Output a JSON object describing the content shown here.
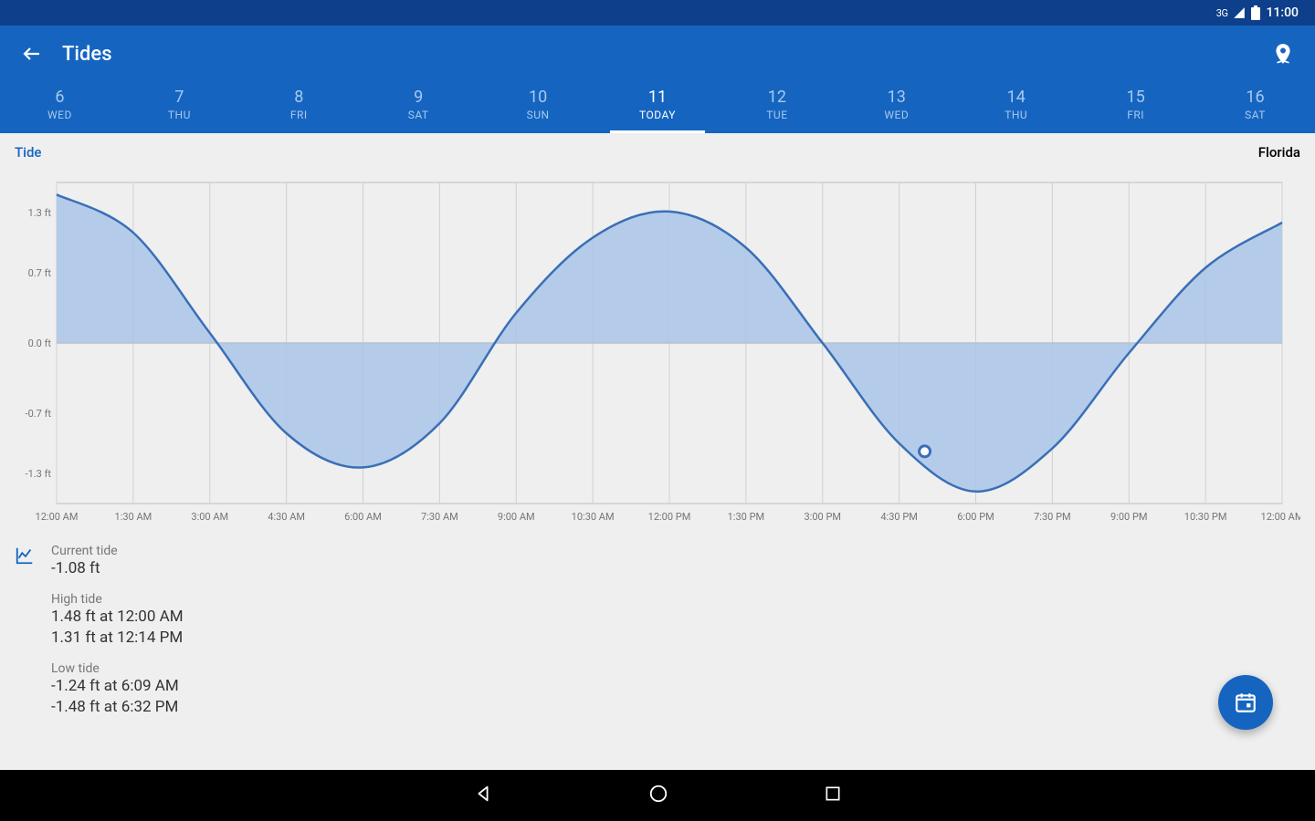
{
  "status": {
    "network": "3G",
    "time": "11:00"
  },
  "appbar": {
    "title": "Tides"
  },
  "tabs": [
    {
      "num": "6",
      "label": "WED",
      "selected": false
    },
    {
      "num": "7",
      "label": "THU",
      "selected": false
    },
    {
      "num": "8",
      "label": "FRI",
      "selected": false
    },
    {
      "num": "9",
      "label": "SAT",
      "selected": false
    },
    {
      "num": "10",
      "label": "SUN",
      "selected": false
    },
    {
      "num": "11",
      "label": "TODAY",
      "selected": true
    },
    {
      "num": "12",
      "label": "TUE",
      "selected": false
    },
    {
      "num": "13",
      "label": "WED",
      "selected": false
    },
    {
      "num": "14",
      "label": "THU",
      "selected": false
    },
    {
      "num": "15",
      "label": "FRI",
      "selected": false
    },
    {
      "num": "16",
      "label": "SAT",
      "selected": false
    }
  ],
  "chart": {
    "type": "area",
    "left_label": "Tide",
    "right_label": "Florida",
    "x_labels": [
      "12:00 AM",
      "1:30 AM",
      "3:00 AM",
      "4:30 AM",
      "6:00 AM",
      "7:30 AM",
      "9:00 AM",
      "10:30 AM",
      "12:00 PM",
      "1:30 PM",
      "3:00 PM",
      "4:30 PM",
      "6:00 PM",
      "7:30 PM",
      "9:00 PM",
      "10:30 PM",
      "12:00 AM"
    ],
    "y_ticks": [
      1.3,
      0.7,
      0.0,
      -0.7,
      -1.3
    ],
    "y_unit": "ft",
    "ylim": [
      -1.6,
      1.6
    ],
    "xlim": [
      0,
      24
    ],
    "series_hours": [
      0,
      1.5,
      3,
      4.5,
      6,
      7.5,
      9,
      10.5,
      12,
      13.5,
      15,
      16.5,
      18,
      19.5,
      21,
      22.5,
      24
    ],
    "series_values": [
      1.48,
      1.1,
      0.1,
      -0.9,
      -1.24,
      -0.8,
      0.3,
      1.05,
      1.31,
      0.95,
      0.0,
      -1.0,
      -1.48,
      -1.05,
      -0.1,
      0.75,
      1.2
    ],
    "marker": {
      "hour": 17,
      "value": -1.08
    },
    "fill_color": "#a9c5e8",
    "line_color": "#3a6fb7",
    "axis_color": "#bdbdbd",
    "grid_color": "#d0d0d0",
    "background_color": "#efefef",
    "label_color": "#757575",
    "label_fontsize": 11
  },
  "info": {
    "current_label": "Current tide",
    "current_value": "-1.08 ft",
    "high_label": "High tide",
    "high1": "1.48 ft at 12:00 AM",
    "high2": "1.31 ft at 12:14 PM",
    "low_label": "Low tide",
    "low1": "-1.24 ft at 6:09 AM",
    "low2": "-1.48 ft at 6:32 PM"
  }
}
